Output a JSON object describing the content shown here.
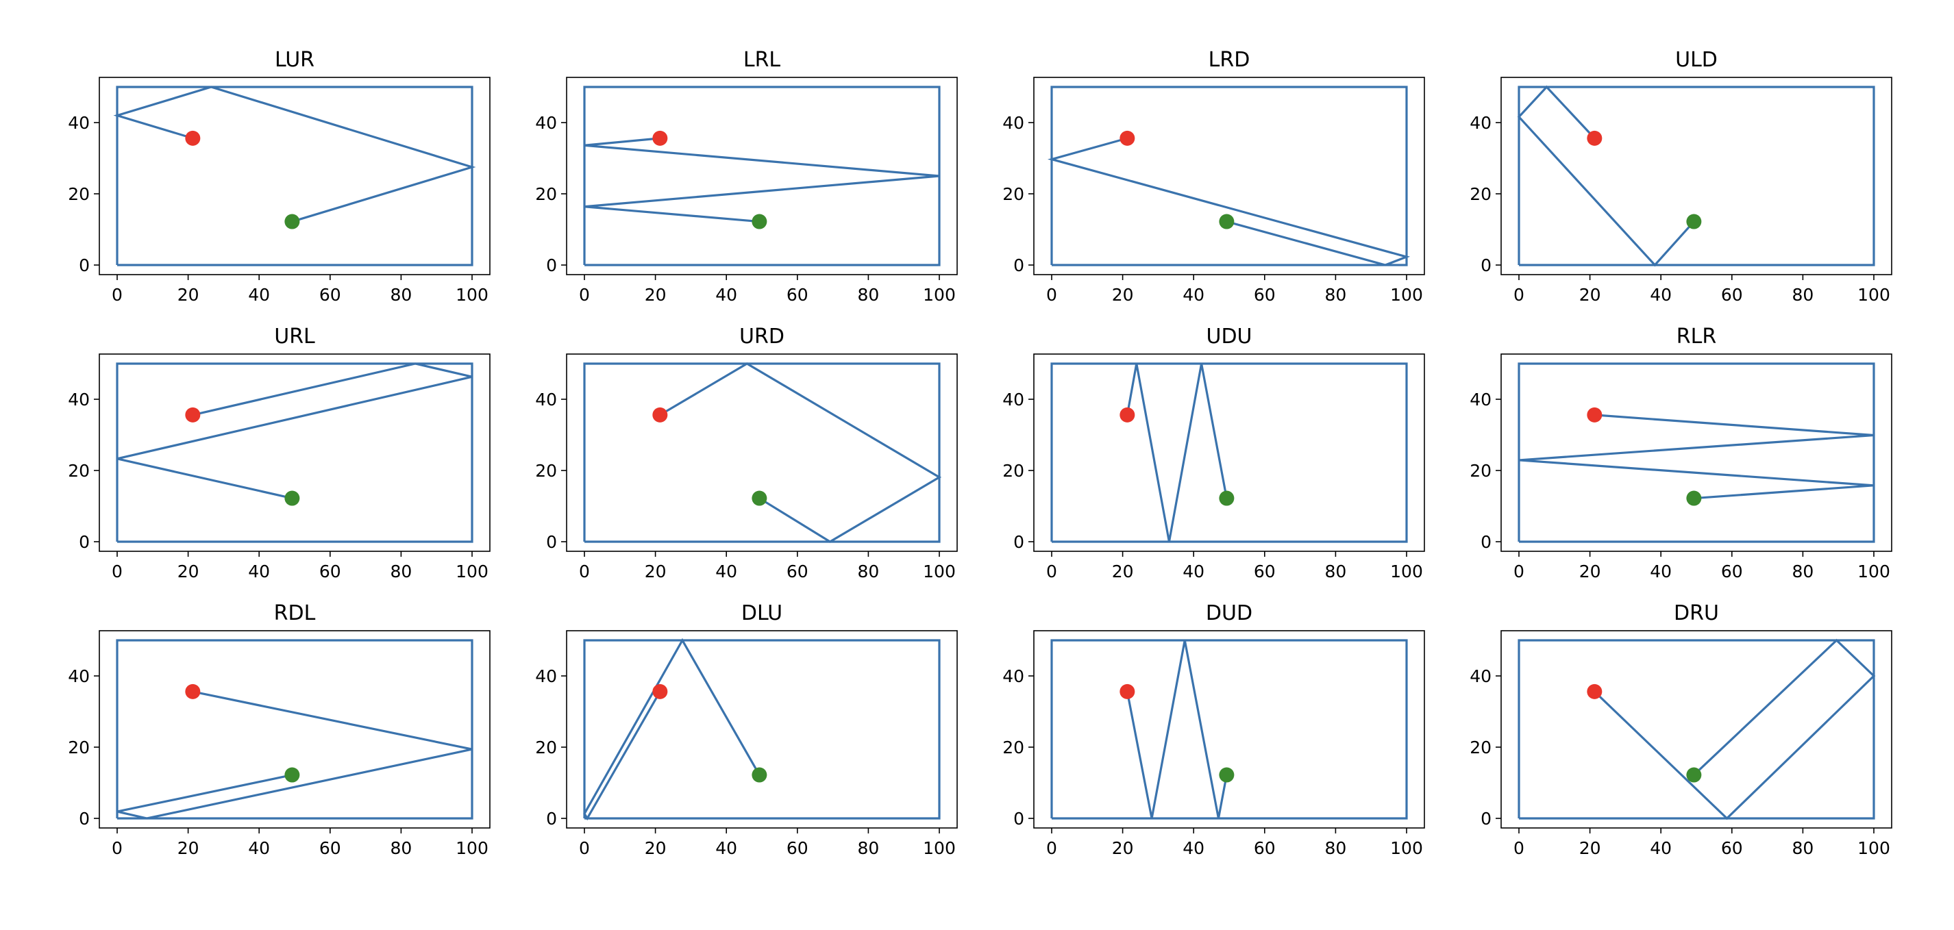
{
  "chart_data": [
    {
      "type": "line",
      "title": "LUR",
      "xlim": [
        0,
        100
      ],
      "ylim": [
        0,
        50
      ],
      "xticks": [
        0,
        20,
        40,
        60,
        80,
        100
      ],
      "yticks": [
        0,
        20,
        40
      ],
      "box": [
        [
          0,
          0
        ],
        [
          100,
          0
        ],
        [
          100,
          50
        ],
        [
          0,
          50
        ],
        [
          0,
          0
        ]
      ],
      "path": [
        [
          21.3,
          35.6
        ],
        [
          0,
          42
        ],
        [
          26.5,
          50
        ],
        [
          100,
          27.5
        ],
        [
          49.3,
          12.2
        ]
      ],
      "points": [
        {
          "x": 21.3,
          "y": 35.6,
          "color": "red"
        },
        {
          "x": 49.3,
          "y": 12.2,
          "color": "green"
        }
      ]
    },
    {
      "type": "line",
      "title": "LRL",
      "xlim": [
        0,
        100
      ],
      "ylim": [
        0,
        50
      ],
      "xticks": [
        0,
        20,
        40,
        60,
        80,
        100
      ],
      "yticks": [
        0,
        20,
        40
      ],
      "box": [
        [
          0,
          0
        ],
        [
          100,
          0
        ],
        [
          100,
          50
        ],
        [
          0,
          50
        ],
        [
          0,
          0
        ]
      ],
      "path": [
        [
          21.3,
          35.6
        ],
        [
          0,
          33.6
        ],
        [
          100,
          25
        ],
        [
          0,
          16.4
        ],
        [
          49.3,
          12.2
        ]
      ],
      "points": [
        {
          "x": 21.3,
          "y": 35.6,
          "color": "red"
        },
        {
          "x": 49.3,
          "y": 12.2,
          "color": "green"
        }
      ]
    },
    {
      "type": "line",
      "title": "LRD",
      "xlim": [
        0,
        100
      ],
      "ylim": [
        0,
        50
      ],
      "xticks": [
        0,
        20,
        40,
        60,
        80,
        100
      ],
      "yticks": [
        0,
        20,
        40
      ],
      "box": [
        [
          0,
          0
        ],
        [
          100,
          0
        ],
        [
          100,
          50
        ],
        [
          0,
          50
        ],
        [
          0,
          0
        ]
      ],
      "path": [
        [
          21.3,
          35.6
        ],
        [
          0,
          29.7
        ],
        [
          100,
          2.3
        ],
        [
          94,
          0
        ],
        [
          49.3,
          12.2
        ]
      ],
      "points": [
        {
          "x": 21.3,
          "y": 35.6,
          "color": "red"
        },
        {
          "x": 49.3,
          "y": 12.2,
          "color": "green"
        }
      ]
    },
    {
      "type": "line",
      "title": "ULD",
      "xlim": [
        0,
        100
      ],
      "ylim": [
        0,
        50
      ],
      "xticks": [
        0,
        20,
        40,
        60,
        80,
        100
      ],
      "yticks": [
        0,
        20,
        40
      ],
      "box": [
        [
          0,
          0
        ],
        [
          100,
          0
        ],
        [
          100,
          50
        ],
        [
          0,
          50
        ],
        [
          0,
          0
        ]
      ],
      "path": [
        [
          21.3,
          35.6
        ],
        [
          7.8,
          50
        ],
        [
          0,
          41.6
        ],
        [
          38.3,
          0
        ],
        [
          49.3,
          12.2
        ]
      ],
      "points": [
        {
          "x": 21.3,
          "y": 35.6,
          "color": "red"
        },
        {
          "x": 49.3,
          "y": 12.2,
          "color": "green"
        }
      ]
    },
    {
      "type": "line",
      "title": "URL",
      "xlim": [
        0,
        100
      ],
      "ylim": [
        0,
        50
      ],
      "xticks": [
        0,
        20,
        40,
        60,
        80,
        100
      ],
      "yticks": [
        0,
        20,
        40
      ],
      "box": [
        [
          0,
          0
        ],
        [
          100,
          0
        ],
        [
          100,
          50
        ],
        [
          0,
          50
        ],
        [
          0,
          0
        ]
      ],
      "path": [
        [
          21.3,
          35.6
        ],
        [
          84,
          50
        ],
        [
          100,
          46.3
        ],
        [
          0,
          23.3
        ],
        [
          49.3,
          12.2
        ]
      ],
      "points": [
        {
          "x": 21.3,
          "y": 35.6,
          "color": "red"
        },
        {
          "x": 49.3,
          "y": 12.2,
          "color": "green"
        }
      ]
    },
    {
      "type": "line",
      "title": "URD",
      "xlim": [
        0,
        100
      ],
      "ylim": [
        0,
        50
      ],
      "xticks": [
        0,
        20,
        40,
        60,
        80,
        100
      ],
      "yticks": [
        0,
        20,
        40
      ],
      "box": [
        [
          0,
          0
        ],
        [
          100,
          0
        ],
        [
          100,
          50
        ],
        [
          0,
          50
        ],
        [
          0,
          0
        ]
      ],
      "path": [
        [
          21.3,
          35.6
        ],
        [
          45.8,
          50
        ],
        [
          100,
          18.1
        ],
        [
          69.2,
          0
        ],
        [
          49.3,
          12.2
        ]
      ],
      "points": [
        {
          "x": 21.3,
          "y": 35.6,
          "color": "red"
        },
        {
          "x": 49.3,
          "y": 12.2,
          "color": "green"
        }
      ]
    },
    {
      "type": "line",
      "title": "UDU",
      "xlim": [
        0,
        100
      ],
      "ylim": [
        0,
        50
      ],
      "xticks": [
        0,
        20,
        40,
        60,
        80,
        100
      ],
      "yticks": [
        0,
        20,
        40
      ],
      "box": [
        [
          0,
          0
        ],
        [
          100,
          0
        ],
        [
          100,
          50
        ],
        [
          0,
          50
        ],
        [
          0,
          0
        ]
      ],
      "path": [
        [
          21.3,
          35.6
        ],
        [
          23.9,
          50
        ],
        [
          33.1,
          0
        ],
        [
          42.2,
          50
        ],
        [
          49.3,
          12.2
        ]
      ],
      "points": [
        {
          "x": 21.3,
          "y": 35.6,
          "color": "red"
        },
        {
          "x": 49.3,
          "y": 12.2,
          "color": "green"
        }
      ]
    },
    {
      "type": "line",
      "title": "RLR",
      "xlim": [
        0,
        100
      ],
      "ylim": [
        0,
        50
      ],
      "xticks": [
        0,
        20,
        40,
        60,
        80,
        100
      ],
      "yticks": [
        0,
        20,
        40
      ],
      "box": [
        [
          0,
          0
        ],
        [
          100,
          0
        ],
        [
          100,
          50
        ],
        [
          0,
          50
        ],
        [
          0,
          0
        ]
      ],
      "path": [
        [
          21.3,
          35.6
        ],
        [
          100,
          29.9
        ],
        [
          0,
          22.9
        ],
        [
          100,
          15.8
        ],
        [
          49.3,
          12.2
        ]
      ],
      "points": [
        {
          "x": 21.3,
          "y": 35.6,
          "color": "red"
        },
        {
          "x": 49.3,
          "y": 12.2,
          "color": "green"
        }
      ]
    },
    {
      "type": "line",
      "title": "RDL",
      "xlim": [
        0,
        100
      ],
      "ylim": [
        0,
        50
      ],
      "xticks": [
        0,
        20,
        40,
        60,
        80,
        100
      ],
      "yticks": [
        0,
        20,
        40
      ],
      "box": [
        [
          0,
          0
        ],
        [
          100,
          0
        ],
        [
          100,
          50
        ],
        [
          0,
          50
        ],
        [
          0,
          0
        ]
      ],
      "path": [
        [
          21.3,
          35.6
        ],
        [
          100,
          19.4
        ],
        [
          8.4,
          0
        ],
        [
          0,
          1.9
        ],
        [
          49.3,
          12.2
        ]
      ],
      "points": [
        {
          "x": 21.3,
          "y": 35.6,
          "color": "red"
        },
        {
          "x": 49.3,
          "y": 12.2,
          "color": "green"
        }
      ]
    },
    {
      "type": "line",
      "title": "DLU",
      "xlim": [
        0,
        100
      ],
      "ylim": [
        0,
        50
      ],
      "xticks": [
        0,
        20,
        40,
        60,
        80,
        100
      ],
      "yticks": [
        0,
        20,
        40
      ],
      "box": [
        [
          0,
          0
        ],
        [
          100,
          0
        ],
        [
          100,
          50
        ],
        [
          0,
          50
        ],
        [
          0,
          0
        ]
      ],
      "path": [
        [
          21.3,
          35.6
        ],
        [
          0.8,
          0
        ],
        [
          0,
          1.3
        ],
        [
          27.6,
          50
        ],
        [
          49.3,
          12.2
        ]
      ],
      "points": [
        {
          "x": 21.3,
          "y": 35.6,
          "color": "red"
        },
        {
          "x": 49.3,
          "y": 12.2,
          "color": "green"
        }
      ]
    },
    {
      "type": "line",
      "title": "DUD",
      "xlim": [
        0,
        100
      ],
      "ylim": [
        0,
        50
      ],
      "xticks": [
        0,
        20,
        40,
        60,
        80,
        100
      ],
      "yticks": [
        0,
        20,
        40
      ],
      "box": [
        [
          0,
          0
        ],
        [
          100,
          0
        ],
        [
          100,
          50
        ],
        [
          0,
          50
        ],
        [
          0,
          0
        ]
      ],
      "path": [
        [
          21.3,
          35.6
        ],
        [
          28.2,
          0
        ],
        [
          37.5,
          50
        ],
        [
          47,
          0
        ],
        [
          49.3,
          12.2
        ]
      ],
      "points": [
        {
          "x": 21.3,
          "y": 35.6,
          "color": "red"
        },
        {
          "x": 49.3,
          "y": 12.2,
          "color": "green"
        }
      ]
    },
    {
      "type": "line",
      "title": "DRU",
      "xlim": [
        0,
        100
      ],
      "ylim": [
        0,
        50
      ],
      "xticks": [
        0,
        20,
        40,
        60,
        80,
        100
      ],
      "yticks": [
        0,
        20,
        40
      ],
      "box": [
        [
          0,
          0
        ],
        [
          100,
          0
        ],
        [
          100,
          50
        ],
        [
          0,
          50
        ],
        [
          0,
          0
        ]
      ],
      "path": [
        [
          21.3,
          35.6
        ],
        [
          58.6,
          0
        ],
        [
          100,
          40
        ],
        [
          89.5,
          50
        ],
        [
          49.3,
          12.2
        ]
      ],
      "points": [
        {
          "x": 21.3,
          "y": 35.6,
          "color": "red"
        },
        {
          "x": 49.3,
          "y": 12.2,
          "color": "green"
        }
      ]
    }
  ],
  "colors": {
    "line": "#3a73ad",
    "start_point": "#e8352a",
    "end_point": "#3b8a2e",
    "axis": "#000000",
    "background": "#ffffff"
  }
}
